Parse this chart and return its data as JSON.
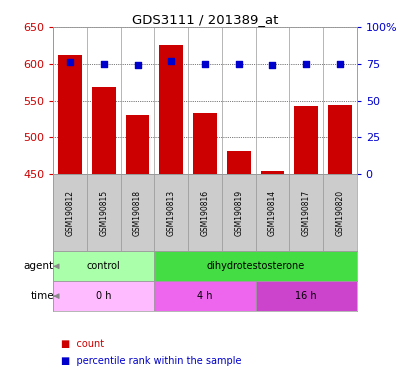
{
  "title": "GDS3111 / 201389_at",
  "samples": [
    "GSM190812",
    "GSM190815",
    "GSM190818",
    "GSM190813",
    "GSM190816",
    "GSM190819",
    "GSM190814",
    "GSM190817",
    "GSM190820"
  ],
  "counts": [
    612,
    569,
    530,
    626,
    533,
    482,
    455,
    542,
    544
  ],
  "percentiles": [
    76,
    75,
    74,
    77,
    75,
    75,
    74,
    75,
    75
  ],
  "ylim_left": [
    450,
    650
  ],
  "ylim_right": [
    0,
    100
  ],
  "yticks_left": [
    450,
    500,
    550,
    600,
    650
  ],
  "yticks_right": [
    0,
    25,
    50,
    75,
    100
  ],
  "bar_color": "#cc0000",
  "dot_color": "#0000cc",
  "bar_width": 0.7,
  "agent_labels": [
    {
      "label": "control",
      "start": 0,
      "end": 3,
      "color": "#aaffaa"
    },
    {
      "label": "dihydrotestosterone",
      "start": 3,
      "end": 9,
      "color": "#44dd44"
    }
  ],
  "time_labels": [
    {
      "label": "0 h",
      "start": 0,
      "end": 3,
      "color": "#ffbbff"
    },
    {
      "label": "4 h",
      "start": 3,
      "end": 6,
      "color": "#ee66ee"
    },
    {
      "label": "16 h",
      "start": 6,
      "end": 9,
      "color": "#cc44cc"
    }
  ],
  "legend_items": [
    {
      "color": "#cc0000",
      "label": "count"
    },
    {
      "color": "#0000cc",
      "label": "percentile rank within the sample"
    }
  ],
  "grid_color": "#000000",
  "background_color": "#ffffff",
  "plot_bg": "#ffffff",
  "sample_box_color": "#cccccc",
  "tick_label_color_left": "#cc0000",
  "tick_label_color_right": "#0000cc"
}
